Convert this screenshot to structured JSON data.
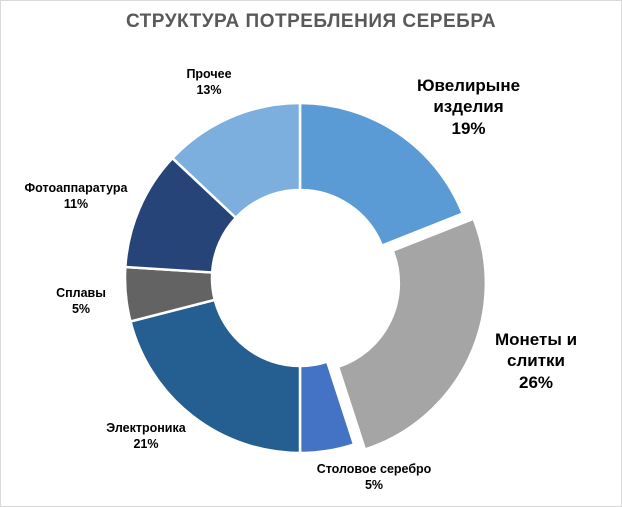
{
  "chart_data": {
    "type": "pie",
    "title": "СТРУКТУРА ПОТРЕБЛЕНИЯ СЕРЕБРА",
    "categories": [
      "Ювелирыне изделия",
      "Монеты и слитки",
      "Столовое серебро",
      "Электроника",
      "Сплавы",
      "Фотоаппаратура",
      "Прочее"
    ],
    "values": [
      19,
      26,
      5,
      21,
      5,
      11,
      13
    ],
    "value_labels": [
      "19%",
      "26%",
      "5%",
      "21%",
      "5%",
      "11%",
      "13%"
    ],
    "colors": [
      "#5B9BD5",
      "#A5A5A5",
      "#4472C4",
      "#255E91",
      "#636363",
      "#264478",
      "#7CAFDD"
    ],
    "exploded": "Монеты и слитки",
    "donut": true,
    "legend": "none"
  }
}
